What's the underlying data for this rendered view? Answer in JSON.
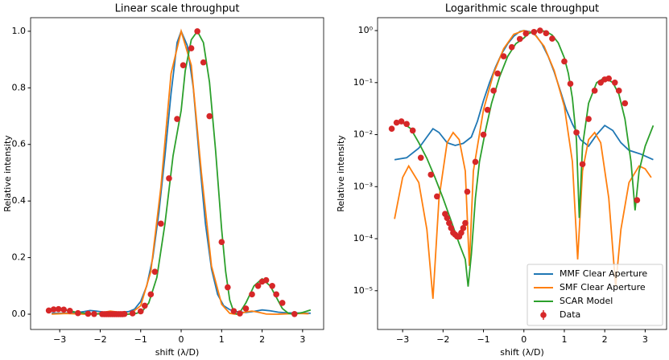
{
  "chart_data": [
    {
      "type": "line",
      "title": "Linear scale throughput",
      "xlabel": "shift (λ/D)",
      "ylabel": "Relative intensity",
      "xlim": [
        -3.72,
        3.52
      ],
      "ylim": [
        -0.054,
        1.048
      ],
      "yscale": "linear",
      "xticks": [
        {
          "value": -3,
          "label": "−3"
        },
        {
          "value": -2,
          "label": "−2"
        },
        {
          "value": -1,
          "label": "−1"
        },
        0,
        1,
        2,
        3
      ],
      "yticks": [
        {
          "value": 0,
          "label": "0.0"
        },
        {
          "value": 0.2,
          "label": "0.2"
        },
        {
          "value": 0.4,
          "label": "0.4"
        },
        {
          "value": 0.6,
          "label": "0.6"
        },
        {
          "value": 0.8,
          "label": "0.8"
        },
        {
          "value": 1,
          "label": "1.0"
        }
      ],
      "series": [
        {
          "type": "line",
          "color": "#1f77b4",
          "x": [
            -3.2,
            -2.9,
            -2.6,
            -2.4,
            -2.25,
            -2.1,
            -1.9,
            -1.7,
            -1.5,
            -1.3,
            -1.15,
            -1.0,
            -0.85,
            -0.7,
            -0.55,
            -0.4,
            -0.25,
            -0.1,
            0,
            0.15,
            0.3,
            0.45,
            0.6,
            0.75,
            0.9,
            1.05,
            1.2,
            1.4,
            1.6,
            1.8,
            2.0,
            2.2,
            2.4,
            2.6,
            2.9,
            3.2
          ],
          "values": [
            0.0033,
            0.0036,
            0.0055,
            0.009,
            0.013,
            0.011,
            0.007,
            0.0062,
            0.0068,
            0.009,
            0.018,
            0.045,
            0.1,
            0.2,
            0.36,
            0.56,
            0.78,
            0.96,
            1.0,
            0.95,
            0.8,
            0.55,
            0.32,
            0.16,
            0.07,
            0.03,
            0.016,
            0.008,
            0.006,
            0.01,
            0.015,
            0.012,
            0.007,
            0.005,
            0.0042,
            0.0033
          ]
        },
        {
          "type": "line",
          "color": "#ff7f0e",
          "x": [
            -3.2,
            -3.0,
            -2.85,
            -2.6,
            -2.4,
            -2.25,
            -2.1,
            -1.9,
            -1.75,
            -1.6,
            -1.45,
            -1.35,
            -1.25,
            -1.0,
            -0.75,
            -0.5,
            -0.25,
            0,
            0.25,
            0.5,
            0.75,
            1.0,
            1.2,
            1.33,
            1.45,
            1.6,
            1.75,
            1.9,
            2.1,
            2.27,
            2.4,
            2.6,
            2.85,
            3.0,
            3.15
          ],
          "values": [
            0.00024,
            0.0015,
            0.0025,
            0.0012,
            0.00015,
            7e-06,
            0.0006,
            0.007,
            0.011,
            0.008,
            0.002,
            3e-05,
            0.002,
            0.03,
            0.15,
            0.45,
            0.85,
            1.0,
            0.88,
            0.5,
            0.17,
            0.035,
            0.003,
            4e-05,
            0.002,
            0.008,
            0.011,
            0.007,
            0.0006,
            1.2e-05,
            0.00015,
            0.0012,
            0.0025,
            0.0022,
            0.0015
          ]
        },
        {
          "type": "line",
          "color": "#2ca02c",
          "x": [
            -3.2,
            -3.0,
            -2.8,
            -2.6,
            -2.4,
            -2.2,
            -2.0,
            -1.8,
            -1.6,
            -1.45,
            -1.38,
            -1.3,
            -1.2,
            -1.1,
            -0.95,
            -0.8,
            -0.6,
            -0.4,
            -0.2,
            0,
            0.1,
            0.25,
            0.4,
            0.55,
            0.7,
            0.85,
            1.0,
            1.1,
            1.2,
            1.3,
            1.37,
            1.45,
            1.6,
            1.8,
            2.0,
            2.2,
            2.35,
            2.5,
            2.65,
            2.75,
            2.85,
            3.0,
            3.2
          ],
          "values": [
            0.016,
            0.017,
            0.013,
            0.007,
            0.0035,
            0.0015,
            0.0006,
            0.00022,
            8e-05,
            4e-05,
            1.2e-05,
            5e-05,
            0.0006,
            0.003,
            0.012,
            0.04,
            0.13,
            0.32,
            0.56,
            0.72,
            0.86,
            0.97,
            1.0,
            0.96,
            0.82,
            0.58,
            0.3,
            0.15,
            0.05,
            0.008,
            0.00025,
            0.006,
            0.04,
            0.1,
            0.125,
            0.1,
            0.06,
            0.02,
            0.003,
            0.00035,
            0.002,
            0.006,
            0.015
          ]
        },
        {
          "type": "scatter",
          "color": "#d62728",
          "x": [
            -3.27,
            -3.15,
            -3.03,
            -2.9,
            -2.75,
            -2.55,
            -2.3,
            -2.15,
            -1.95,
            -1.9,
            -1.85,
            -1.8,
            -1.75,
            -1.7,
            -1.65,
            -1.6,
            -1.55,
            -1.5,
            -1.45,
            -1.4,
            -1.2,
            -1.0,
            -0.9,
            -0.75,
            -0.65,
            -0.5,
            -0.3,
            -0.1,
            0.05,
            0.25,
            0.4,
            0.55,
            0.7,
            1.0,
            1.15,
            1.3,
            1.45,
            1.6,
            1.75,
            1.9,
            2.0,
            2.1,
            2.25,
            2.35,
            2.5,
            2.8
          ],
          "values": [
            0.013,
            0.017,
            0.018,
            0.016,
            0.012,
            0.0036,
            0.0017,
            0.00065,
            0.0003,
            0.00025,
            0.0002,
            0.00016,
            0.00013,
            0.00012,
            0.00011,
            0.00011,
            0.00013,
            0.00016,
            0.0002,
            0.0008,
            0.003,
            0.01,
            0.03,
            0.07,
            0.15,
            0.32,
            0.48,
            0.69,
            0.88,
            0.94,
            1.0,
            0.89,
            0.7,
            0.255,
            0.095,
            0.011,
            0.0027,
            0.02,
            0.07,
            0.1,
            0.115,
            0.12,
            0.1,
            0.07,
            0.04,
            0.00055
          ]
        }
      ]
    },
    {
      "type": "line",
      "title": "Logarithmic scale throughput",
      "xlabel": "shift (λ/D)",
      "ylabel": "Relative intensity",
      "xlim": [
        -3.62,
        3.53
      ],
      "ylim": [
        1.8e-06,
        1.77
      ],
      "yscale": "log",
      "legend": "lower right",
      "xticks": [
        {
          "value": -3,
          "label": "−3"
        },
        {
          "value": -2,
          "label": "−2"
        },
        {
          "value": -1,
          "label": "−1"
        },
        0,
        1,
        2,
        3
      ],
      "yticks": [
        {
          "value": 1e-05,
          "label": "10⁻⁵"
        },
        {
          "value": 0.0001,
          "label": "10⁻⁴"
        },
        {
          "value": 0.001,
          "label": "10⁻³"
        },
        {
          "value": 0.01,
          "label": "10⁻²"
        },
        {
          "value": 0.1,
          "label": "10⁻¹"
        },
        {
          "value": 1,
          "label": "10⁰"
        }
      ],
      "series": [
        {
          "type": "line",
          "name": "MMF Clear Aperture",
          "color": "#1f77b4",
          "x": [
            -3.2,
            -2.9,
            -2.6,
            -2.4,
            -2.25,
            -2.1,
            -1.9,
            -1.7,
            -1.5,
            -1.3,
            -1.15,
            -1.0,
            -0.85,
            -0.7,
            -0.55,
            -0.4,
            -0.25,
            -0.1,
            0,
            0.15,
            0.3,
            0.45,
            0.6,
            0.75,
            0.9,
            1.05,
            1.2,
            1.4,
            1.6,
            1.8,
            2.0,
            2.2,
            2.4,
            2.6,
            2.9,
            3.2
          ],
          "values": [
            0.0033,
            0.0036,
            0.0055,
            0.009,
            0.013,
            0.011,
            0.007,
            0.0062,
            0.0068,
            0.009,
            0.018,
            0.045,
            0.1,
            0.2,
            0.36,
            0.56,
            0.78,
            0.96,
            1.0,
            0.95,
            0.8,
            0.55,
            0.32,
            0.16,
            0.07,
            0.03,
            0.016,
            0.008,
            0.006,
            0.01,
            0.015,
            0.012,
            0.007,
            0.005,
            0.0042,
            0.0033
          ]
        },
        {
          "type": "line",
          "name": "SMF Clear Aperture",
          "color": "#ff7f0e",
          "x": [
            -3.2,
            -3.0,
            -2.85,
            -2.6,
            -2.4,
            -2.25,
            -2.1,
            -1.9,
            -1.75,
            -1.6,
            -1.45,
            -1.35,
            -1.25,
            -1.0,
            -0.75,
            -0.5,
            -0.25,
            0,
            0.25,
            0.5,
            0.75,
            1.0,
            1.2,
            1.33,
            1.45,
            1.6,
            1.75,
            1.9,
            2.1,
            2.27,
            2.4,
            2.6,
            2.85,
            3.0,
            3.15
          ],
          "values": [
            0.00024,
            0.0015,
            0.0025,
            0.0012,
            0.00015,
            7e-06,
            0.0006,
            0.007,
            0.011,
            0.008,
            0.002,
            3e-05,
            0.002,
            0.03,
            0.15,
            0.45,
            0.85,
            1.0,
            0.88,
            0.5,
            0.17,
            0.035,
            0.003,
            4e-05,
            0.002,
            0.008,
            0.011,
            0.007,
            0.0006,
            1.2e-05,
            0.00015,
            0.0012,
            0.0025,
            0.0022,
            0.0015
          ]
        },
        {
          "type": "line",
          "name": "SCAR Model",
          "color": "#2ca02c",
          "x": [
            -3.2,
            -3.0,
            -2.8,
            -2.6,
            -2.4,
            -2.2,
            -2.0,
            -1.8,
            -1.6,
            -1.45,
            -1.38,
            -1.3,
            -1.2,
            -1.1,
            -0.95,
            -0.8,
            -0.6,
            -0.4,
            -0.2,
            0,
            0.1,
            0.25,
            0.4,
            0.55,
            0.7,
            0.85,
            1.0,
            1.1,
            1.2,
            1.3,
            1.37,
            1.45,
            1.6,
            1.8,
            2.0,
            2.2,
            2.35,
            2.5,
            2.65,
            2.75,
            2.85,
            3.0,
            3.2
          ],
          "values": [
            0.016,
            0.017,
            0.013,
            0.007,
            0.0035,
            0.0015,
            0.0006,
            0.00022,
            8e-05,
            4e-05,
            1.2e-05,
            5e-05,
            0.0006,
            0.003,
            0.012,
            0.04,
            0.13,
            0.32,
            0.56,
            0.72,
            0.86,
            0.97,
            1.0,
            0.96,
            0.82,
            0.58,
            0.3,
            0.15,
            0.05,
            0.008,
            0.00025,
            0.006,
            0.04,
            0.1,
            0.125,
            0.1,
            0.06,
            0.02,
            0.003,
            0.00035,
            0.002,
            0.006,
            0.015
          ]
        },
        {
          "type": "scatter",
          "name": "Data",
          "color": "#d62728",
          "x": [
            -3.27,
            -3.15,
            -3.03,
            -2.9,
            -2.75,
            -2.55,
            -2.3,
            -2.15,
            -1.95,
            -1.9,
            -1.85,
            -1.8,
            -1.75,
            -1.7,
            -1.65,
            -1.6,
            -1.55,
            -1.5,
            -1.45,
            -1.4,
            -1.2,
            -1.0,
            -0.9,
            -0.75,
            -0.65,
            -0.5,
            -0.3,
            -0.1,
            0.05,
            0.25,
            0.4,
            0.55,
            0.7,
            1.0,
            1.15,
            1.3,
            1.45,
            1.6,
            1.75,
            1.9,
            2.0,
            2.1,
            2.25,
            2.35,
            2.5,
            2.8
          ],
          "values": [
            0.013,
            0.017,
            0.018,
            0.016,
            0.012,
            0.0036,
            0.0017,
            0.00065,
            0.0003,
            0.00025,
            0.0002,
            0.00016,
            0.00013,
            0.00012,
            0.00011,
            0.00011,
            0.00013,
            0.00016,
            0.0002,
            0.0008,
            0.003,
            0.01,
            0.03,
            0.07,
            0.15,
            0.32,
            0.48,
            0.69,
            0.88,
            0.94,
            1.0,
            0.89,
            0.7,
            0.255,
            0.095,
            0.011,
            0.0027,
            0.02,
            0.07,
            0.1,
            0.115,
            0.12,
            0.1,
            0.07,
            0.04,
            0.00055
          ]
        }
      ]
    }
  ]
}
